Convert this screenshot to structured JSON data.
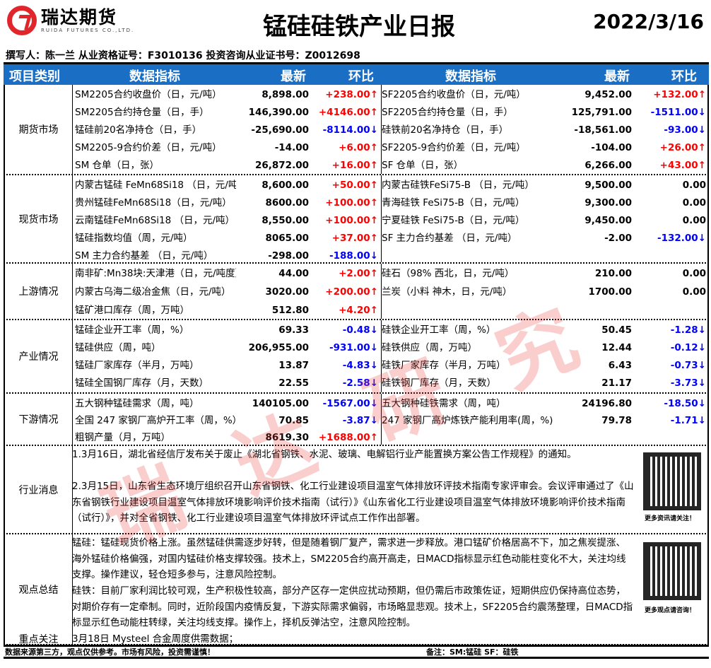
{
  "header": {
    "logo_cn": "瑞达期货",
    "logo_en": "RUIDA FUTURES CO.,LTD.",
    "title": "锰硅硅铁产业日报",
    "date": "2022/3/16",
    "author": "撰写人：陈一兰   从业资格证号：F3010136    投资咨询从业证书号：Z0012698"
  },
  "columns": {
    "category": "项目类别",
    "indicator": "数据指标",
    "latest": "最新",
    "change": "环比"
  },
  "colors": {
    "header_bg": "#1a6fc4",
    "up": "#ff0000",
    "down": "#0000ff"
  },
  "sections": [
    {
      "category": "期货市场",
      "rows": [
        [
          "SM2205合约收盘价（日，元/吨）",
          "8,898.00",
          "+238.00↑",
          "SF2205合约收盘价（日，元/吨）",
          "9,452.00",
          "+132.00↑"
        ],
        [
          "SM2205合约持仓量（日，手）",
          "146,390.00",
          "+4146.00↑",
          "SF2205合约持仓量（日，手）",
          "125,791.00",
          "-1511.00↓"
        ],
        [
          "锰硅前20名净持仓（日，手）",
          "-25,690.00",
          "-8114.00↓",
          "硅铁前20名净持仓（日，手）",
          "-18,561.00",
          "-93.00↓"
        ],
        [
          "SM2205-9合约价差（日，元/吨）",
          "-14.00",
          "+6.00↑",
          "SF2205-9合约价差（日，元/吨）",
          "-104.00",
          "+26.00↑"
        ],
        [
          "SM 仓单（日，张）",
          "26,872.00",
          "+16.00↑",
          "SF 仓单（日，张）",
          "6,266.00",
          "+43.00↑"
        ]
      ]
    },
    {
      "category": "现货市场",
      "rows": [
        [
          "内蒙古锰硅 FeMn68Si18 （日，元/吨",
          "8,600.00",
          "+50.00↑",
          "内蒙古硅铁FeSi75-B （日，元/吨）",
          "9,500.00",
          "0.00"
        ],
        [
          "贵州锰硅FeMn68Si18（日，元/吨）",
          "8600.00",
          "+100.00↑",
          "青海硅铁 FeSi75-B（日，元/吨）",
          "9,300.00",
          "0.00"
        ],
        [
          "云南锰硅FeMn68Si18 （日，元/吨）",
          "8,550.00",
          "+100.00↑",
          "宁夏硅铁 FeSi75-B（日，元/吨）",
          "9,450.00",
          "0.00"
        ],
        [
          "锰硅指数均值（周，元/吨）",
          "8065.00",
          "+37.00↑",
          "SF 主力合约基差 （日，元/吨）",
          "-2.00",
          "-132.00↓"
        ],
        [
          "SM 主力合约基差 （日，元/吨）",
          "-298.00",
          "-188.00↓",
          "",
          "",
          ""
        ]
      ]
    },
    {
      "category": "上游情况",
      "rows": [
        [
          "南非矿:Mn38块:天津港（日，元/吨度）",
          "44.00",
          "+2.00↑",
          "硅石（98% 西北，日，元/吨）",
          "210.00",
          "0.00"
        ],
        [
          "内蒙古乌海二级冶金焦（日，元/吨）",
          "3020.00",
          "+200.00↑",
          "兰炭（小料 神木，日，元/吨）",
          "1700.00",
          "0.00"
        ],
        [
          "锰矿港口库存（周，万吨）",
          "512.80",
          "+4.20↑",
          "",
          "",
          ""
        ]
      ]
    },
    {
      "category": "产业情况",
      "rows": [
        [
          "锰硅企业开工率（周，%）",
          "69.33",
          "-0.48↓",
          "硅铁企业开工率（周，%）",
          "50.45",
          "-1.28↓"
        ],
        [
          "锰硅供应（周，吨）",
          "206,955.00",
          "-931.00↓",
          "硅铁供应（周，万吨）",
          "12.44",
          "-0.12↓"
        ],
        [
          "锰硅厂家库存（半月，万吨）",
          "13.87",
          "-4.83↓",
          "硅铁厂家库存（半月，万吨）",
          "6.43",
          "-0.73↓"
        ],
        [
          "锰硅全国钢厂库存（月，天数）",
          "22.55",
          "-2.58↓",
          "硅铁钢厂库存（月，天数）",
          "21.17",
          "-3.73↓"
        ]
      ]
    },
    {
      "category": "下游情况",
      "rows": [
        [
          "五大钢种锰硅需求（周，吨）",
          "140105.00",
          "-1567.00↓",
          "五大钢种硅铁需求（周，吨）",
          "24196.80",
          "-18.50↓"
        ],
        [
          "全国 247 家钢厂高炉开工率（周，%）",
          "70.85",
          "-3.87↓",
          " 247 家钢厂高炉炼铁产能利用率(周，%)",
          "79.78",
          "-1.71↓"
        ],
        [
          "粗钢产量（月，万吨）",
          "8619.30",
          "+1688.00↑",
          "",
          "",
          ""
        ]
      ]
    }
  ],
  "news": {
    "category": "行业消息",
    "items": [
      "1.3月16日，湖北省经信厅发布关于废止《湖北省钢铁、水泥、玻璃、电解铝行业产能置换方案公告工作规程》的通知。",
      "2.3月15日，山东省生态环境厅组织召开山东省钢铁、化工行业建设项目温室气体排放环评技术指南专家评审会。会议评审通过了《山东省钢铁行业建设项目温室气体排放环境影响评价技术指南（试行）》《山东省化工行业建设项目温室气体排放环境影响评价技术指南（试行）》，并对全省钢铁、化工行业建设项目温室气体排放环评试点工作作出部署。"
    ],
    "qr_caption": "更多资讯请关注！"
  },
  "views": {
    "category": "观点总结",
    "items": [
      "锰硅：锰硅现货价格上涨。虽然锰硅供需逐步好转，但是随着钢厂复产，需求进一步释放。港口锰矿价格居高不下，加之焦炭提涨、海外锰硅价格偏强，对国内锰硅价格支撑较强。技术上，SM2205合约高开高走，日MACD指标显示红色动能柱变化不大，关注均线支撑。操作建议，轻仓短多参与，注意风险控制。",
      "硅铁：目前厂家利润比较可观，生产积极性较高，部分产区存一定供应扰动预期，但仍需后市政策佐证，短期供应仍保持高位态势，对期价存有一定牵制。同时，近阶段国内疫情反复，下游实际需求偏弱，市场略显悲观。技术上，SF2205合约震荡整理，日MACD指标显示红色动能柱转绿，关注均线支撑。操作上，择机反弹沽空，注意风险控制。"
    ],
    "qr_caption": "更多观点请咨询！"
  },
  "focus": {
    "category": "重点关注",
    "text": "3月18日   Mysteel  合金周度供需数据；"
  },
  "footer": {
    "disclaimer": "数据来源第三方，观点仅供参考。市场有风险，投资需谨慎！",
    "note": "备注：SM:锰硅 SF：硅铁"
  },
  "watermark": "瑞达研究"
}
